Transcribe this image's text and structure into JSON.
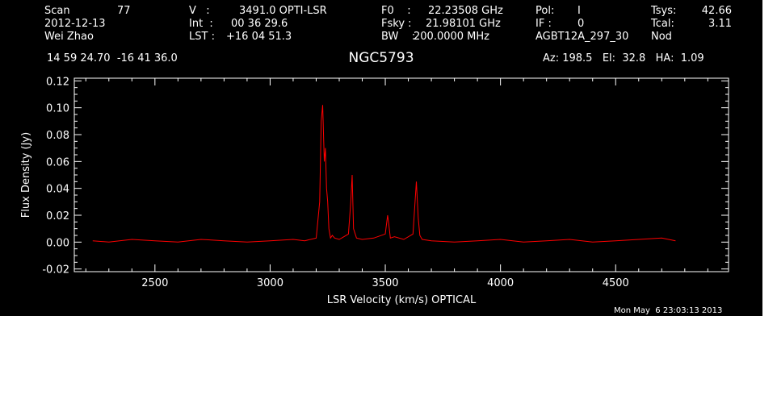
{
  "header": {
    "col1": [
      [
        "Scan",
        "77"
      ],
      [
        "2012-12-13",
        ""
      ],
      [
        "Wei Zhao",
        ""
      ]
    ],
    "col2": [
      [
        "V   :",
        "3491.0 OPTI-LSR"
      ],
      [
        "Int  :",
        "00 36 29.6"
      ],
      [
        "LST :",
        "+16 04 51.3"
      ]
    ],
    "col3": [
      [
        "F0    :",
        "22.23508 GHz"
      ],
      [
        "Fsky :",
        "21.98101 GHz"
      ],
      [
        "BW    :",
        "200.0000 MHz"
      ]
    ],
    "col4": [
      [
        "Pol:",
        "I"
      ],
      [
        "IF :",
        "0"
      ],
      [
        "AGBT12A_297_30",
        ""
      ]
    ],
    "col5": [
      [
        "Tsys:",
        "42.66"
      ],
      [
        "Tcal:",
        "3.11"
      ],
      [
        "Nod",
        ""
      ]
    ]
  },
  "coords": "14 59 24.70  -16 41 36.0",
  "source_name": "NGC5793",
  "pointing": "Az: 198.5   El:  32.8   HA:  1.09",
  "timestamp": "Mon May  6 23:03:13 2013",
  "colors": {
    "background": "#000000",
    "axes": "#ffffff",
    "trace": "#ff0000"
  },
  "chart_data": {
    "type": "line",
    "title": "NGC5793",
    "xlabel": "LSR Velocity (km/s) OPTICAL",
    "ylabel": "Flux Density (Jy)",
    "xlim": [
      2150,
      4990
    ],
    "ylim": [
      -0.022,
      0.122
    ],
    "xticks": [
      2500,
      3000,
      3500,
      4000,
      4500
    ],
    "yticks": [
      -0.02,
      0.0,
      0.02,
      0.04,
      0.06,
      0.08,
      0.1,
      0.12
    ],
    "ytick_labels": [
      "-0.02",
      "0.00",
      "0.02",
      "0.04",
      "0.06",
      "0.08",
      "0.10",
      "0.12"
    ],
    "grid": false,
    "series": [
      {
        "color": "#ff0000",
        "x": [
          2230,
          2300,
          2400,
          2500,
          2600,
          2700,
          2800,
          2900,
          3000,
          3100,
          3150,
          3200,
          3215,
          3222,
          3228,
          3235,
          3240,
          3245,
          3250,
          3255,
          3262,
          3270,
          3280,
          3300,
          3320,
          3340,
          3350,
          3356,
          3362,
          3375,
          3400,
          3450,
          3500,
          3510,
          3516,
          3522,
          3540,
          3580,
          3620,
          3635,
          3643,
          3650,
          3660,
          3700,
          3800,
          3900,
          4000,
          4100,
          4200,
          4300,
          4400,
          4500,
          4600,
          4700,
          4760
        ],
        "y": [
          0.001,
          0.0,
          0.002,
          0.001,
          0.0,
          0.002,
          0.001,
          0.0,
          0.001,
          0.002,
          0.001,
          0.003,
          0.03,
          0.09,
          0.102,
          0.06,
          0.07,
          0.04,
          0.03,
          0.01,
          0.003,
          0.005,
          0.003,
          0.002,
          0.004,
          0.006,
          0.03,
          0.05,
          0.01,
          0.003,
          0.002,
          0.003,
          0.006,
          0.02,
          0.012,
          0.003,
          0.004,
          0.002,
          0.006,
          0.045,
          0.018,
          0.005,
          0.002,
          0.001,
          0.0,
          0.001,
          0.002,
          0.0,
          0.001,
          0.002,
          0.0,
          0.001,
          0.002,
          0.003,
          0.001
        ]
      }
    ]
  }
}
